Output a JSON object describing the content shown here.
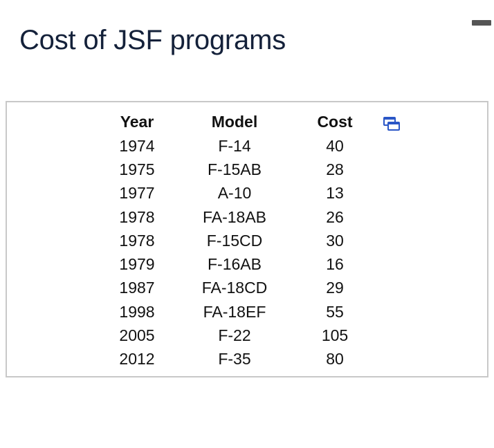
{
  "page": {
    "title": "Cost of JSF programs"
  },
  "table": {
    "columns": [
      "Year",
      "Model",
      "Cost"
    ],
    "rows": [
      {
        "year": "1974",
        "model": "F-14",
        "cost": "40"
      },
      {
        "year": "1975",
        "model": "F-15AB",
        "cost": "28"
      },
      {
        "year": "1977",
        "model": "A-10",
        "cost": "13"
      },
      {
        "year": "1978",
        "model": "FA-18AB",
        "cost": "26"
      },
      {
        "year": "1978",
        "model": "F-15CD",
        "cost": "30"
      },
      {
        "year": "1979",
        "model": "F-16AB",
        "cost": "16"
      },
      {
        "year": "1987",
        "model": "FA-18CD",
        "cost": "29"
      },
      {
        "year": "1998",
        "model": "FA-18EF",
        "cost": "55"
      },
      {
        "year": "2005",
        "model": "F-22",
        "cost": "105"
      },
      {
        "year": "2012",
        "model": "F-35",
        "cost": "80"
      }
    ]
  },
  "icons": {
    "copy": "copy-icon",
    "corner": "minimize-icon"
  },
  "colors": {
    "title": "#14213a",
    "border": "#c8c8c8",
    "icon_accent": "#2a56c6"
  }
}
